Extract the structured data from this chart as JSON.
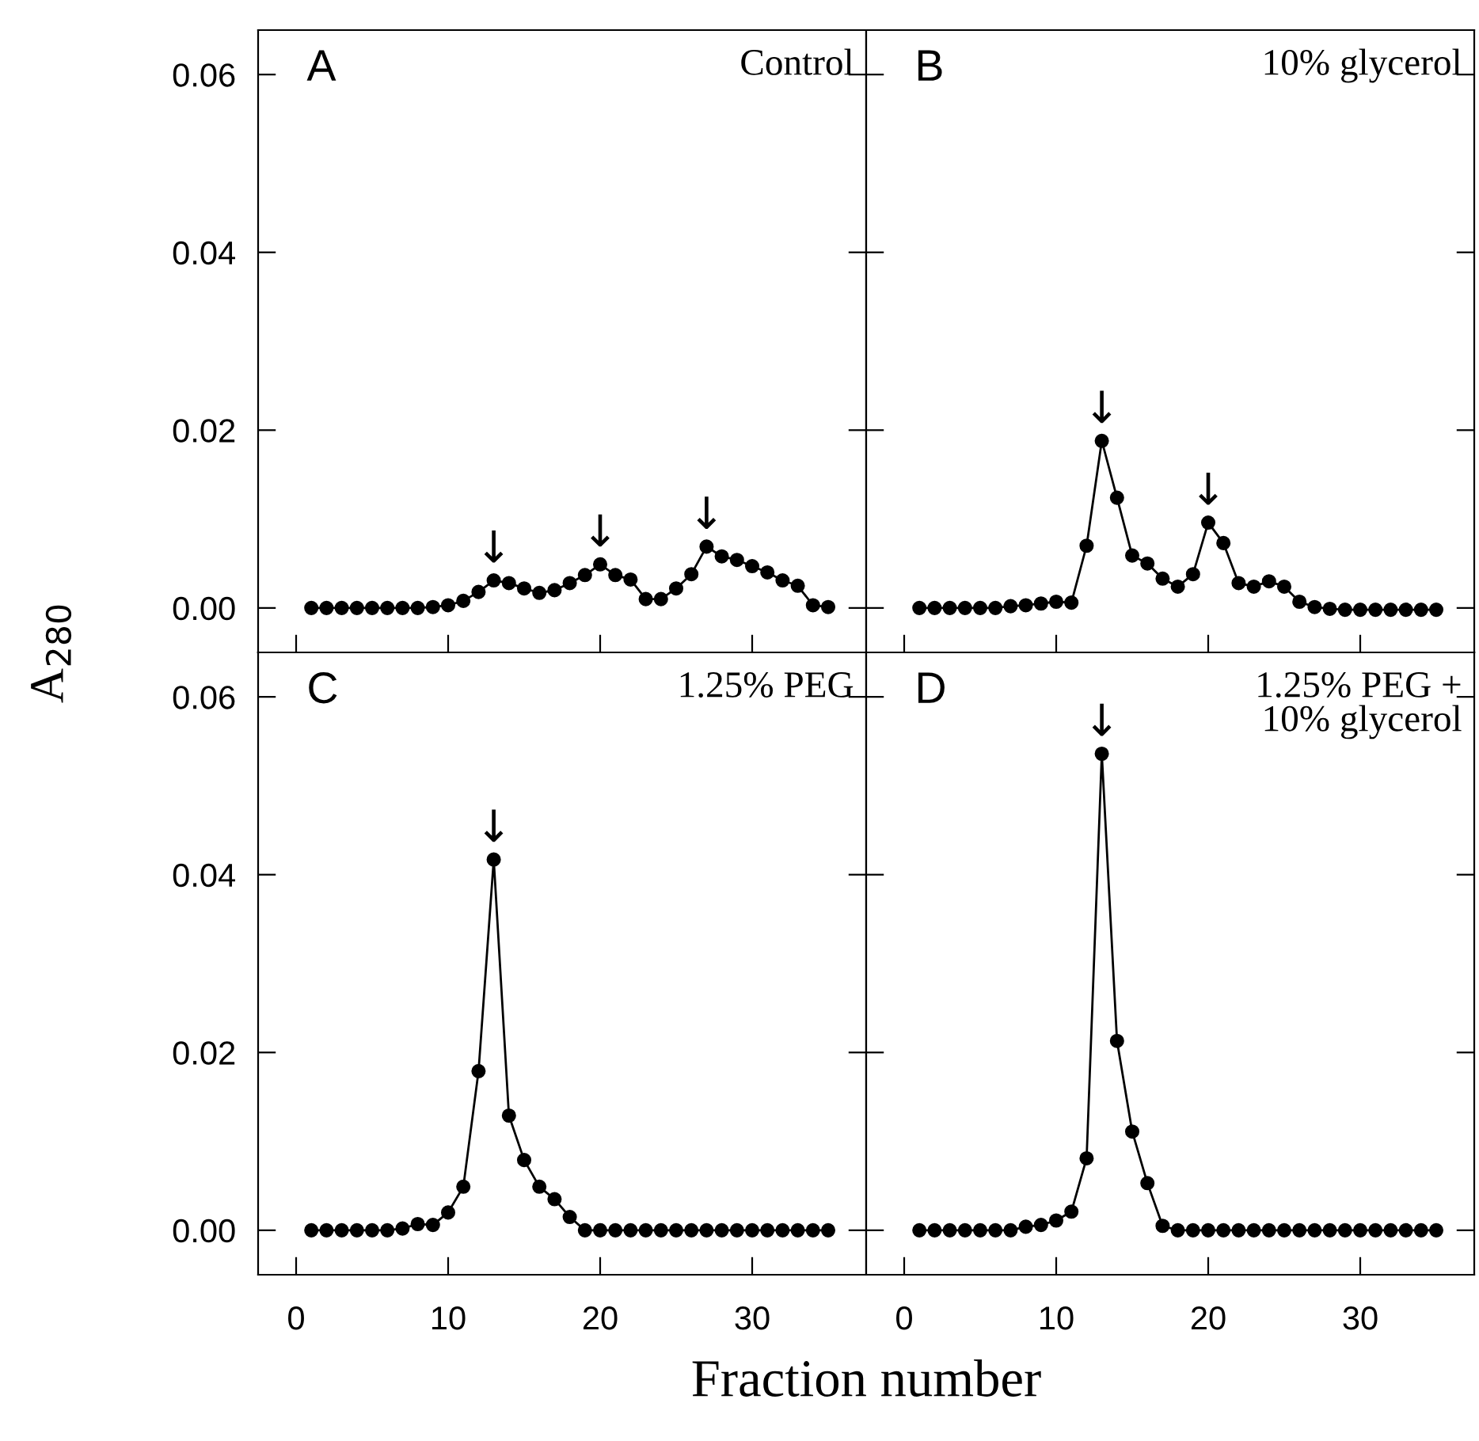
{
  "chart_data": [
    {
      "type": "line",
      "title": "A",
      "subtitle": "Control",
      "ylabel": "A$_{280}$",
      "x": [
        1,
        2,
        3,
        4,
        5,
        6,
        7,
        8,
        9,
        10,
        11,
        12,
        13,
        14,
        15,
        16,
        17,
        18,
        19,
        20,
        21,
        22,
        23,
        24,
        25,
        26,
        27,
        28,
        29,
        30,
        31,
        32,
        33,
        34,
        35
      ],
      "series": [
        {
          "color": "#000000",
          "values": [
            0,
            0,
            0,
            0,
            0,
            0,
            0,
            0,
            0.0001,
            0.0003,
            0.0008,
            0.0018,
            0.0031,
            0.0028,
            0.0022,
            0.0017,
            0.002,
            0.0028,
            0.0037,
            0.0049,
            0.0037,
            0.0032,
            0.001,
            0.001,
            0.0022,
            0.0038,
            0.0069,
            0.0058,
            0.0054,
            0.0047,
            0.004,
            0.0031,
            0.0025,
            0.0003,
            0.0001
          ]
        }
      ],
      "annotations": [
        {
          "text": "↓",
          "x": 13,
          "y": 0.0031
        },
        {
          "text": "↓",
          "x": 20,
          "y": 0.0049
        },
        {
          "text": "↓",
          "x": 27,
          "y": 0.0069
        }
      ],
      "xlim": [
        -2.5,
        37.5
      ],
      "ylim": [
        -0.005,
        0.065
      ],
      "xticks": [
        0,
        10,
        20,
        30
      ],
      "yticks": [
        {
          "value": 0,
          "label": "0.00"
        },
        {
          "value": 0.02,
          "label": "0.02"
        },
        {
          "value": 0.04,
          "label": "0.04"
        },
        {
          "value": 0.06,
          "label": "0.06"
        }
      ],
      "tick_labels": "y",
      "marker": "circle",
      "line_style": "solid",
      "grid": false,
      "legend": false
    },
    {
      "type": "line",
      "title": "B",
      "subtitle": "10% glycerol",
      "x": [
        1,
        2,
        3,
        4,
        5,
        6,
        7,
        8,
        9,
        10,
        11,
        12,
        13,
        14,
        15,
        16,
        17,
        18,
        19,
        20,
        21,
        22,
        23,
        24,
        25,
        26,
        27,
        28,
        29,
        30,
        31,
        32,
        33,
        34,
        35
      ],
      "series": [
        {
          "color": "#000000",
          "values": [
            0,
            0,
            0,
            0,
            0,
            0,
            0.0002,
            0.0003,
            0.0005,
            0.0007,
            0.0006,
            0.007,
            0.0188,
            0.0124,
            0.0059,
            0.005,
            0.0033,
            0.0024,
            0.0038,
            0.0096,
            0.0073,
            0.0028,
            0.0024,
            0.003,
            0.0024,
            0.0007,
            0.0001,
            -0.0001,
            -0.0002,
            -0.0002,
            -0.0002,
            -0.0002,
            -0.0002,
            -0.0002,
            -0.0002
          ]
        }
      ],
      "annotations": [
        {
          "text": "↓",
          "x": 13,
          "y": 0.0188
        },
        {
          "text": "↓",
          "x": 20,
          "y": 0.0096
        }
      ],
      "xlim": [
        -2.5,
        37.5
      ],
      "ylim": [
        -0.005,
        0.065
      ],
      "xticks": [
        0,
        10,
        20,
        30
      ],
      "yticks": [
        0,
        0.02,
        0.04,
        0.06
      ],
      "tick_labels": false,
      "marker": "circle",
      "line_style": "solid",
      "grid": false,
      "legend": false
    },
    {
      "type": "line",
      "title": "C",
      "subtitle": "1.25% PEG",
      "xlabel": "Fraction number",
      "x": [
        1,
        2,
        3,
        4,
        5,
        6,
        7,
        8,
        9,
        10,
        11,
        12,
        13,
        14,
        15,
        16,
        17,
        18,
        19,
        20,
        21,
        22,
        23,
        24,
        25,
        26,
        27,
        28,
        29,
        30,
        31,
        32,
        33,
        34,
        35
      ],
      "series": [
        {
          "color": "#000000",
          "values": [
            0,
            0,
            0,
            0,
            0,
            0,
            0.0002,
            0.0007,
            0.0006,
            0.002,
            0.0049,
            0.0179,
            0.0417,
            0.0129,
            0.0079,
            0.0049,
            0.0035,
            0.0015,
            0,
            0,
            0,
            0,
            0,
            0,
            0,
            0,
            0,
            0,
            0,
            0,
            0,
            0,
            0,
            0,
            0
          ]
        }
      ],
      "annotations": [
        {
          "text": "↓",
          "x": 13,
          "y": 0.0417
        }
      ],
      "xlim": [
        -2.5,
        37.5
      ],
      "ylim": [
        -0.005,
        0.065
      ],
      "xticks": [
        0,
        10,
        20,
        30
      ],
      "yticks": [
        {
          "value": 0,
          "label": "0.00"
        },
        {
          "value": 0.02,
          "label": "0.02"
        },
        {
          "value": 0.04,
          "label": "0.04"
        },
        {
          "value": 0.06,
          "label": "0.06"
        }
      ],
      "marker": "circle",
      "line_style": "solid",
      "grid": false,
      "legend": false
    },
    {
      "type": "line",
      "title": "D",
      "subtitle": "1.25% PEG +\n10% glycerol",
      "x": [
        1,
        2,
        3,
        4,
        5,
        6,
        7,
        8,
        9,
        10,
        11,
        12,
        13,
        14,
        15,
        16,
        17,
        18,
        19,
        20,
        21,
        22,
        23,
        24,
        25,
        26,
        27,
        28,
        29,
        30,
        31,
        32,
        33,
        34,
        35
      ],
      "series": [
        {
          "color": "#000000",
          "values": [
            0,
            0,
            0,
            0,
            0,
            0,
            0,
            0.0004,
            0.0006,
            0.0011,
            0.0021,
            0.0081,
            0.0536,
            0.0213,
            0.0111,
            0.0053,
            0.0005,
            0,
            0,
            0,
            0,
            0,
            0,
            0,
            0,
            0,
            0,
            0,
            0,
            0,
            0,
            0,
            0,
            0,
            0
          ]
        }
      ],
      "annotations": [
        {
          "text": "↓",
          "x": 13,
          "y": 0.0536
        }
      ],
      "xlim": [
        -2.5,
        37.5
      ],
      "ylim": [
        -0.005,
        0.065
      ],
      "xticks": [
        0,
        10,
        20,
        30
      ],
      "yticks": [
        0,
        0.02,
        0.04,
        0.06
      ],
      "tick_labels": "x",
      "marker": "circle",
      "line_style": "solid",
      "grid": false,
      "legend": false
    }
  ]
}
